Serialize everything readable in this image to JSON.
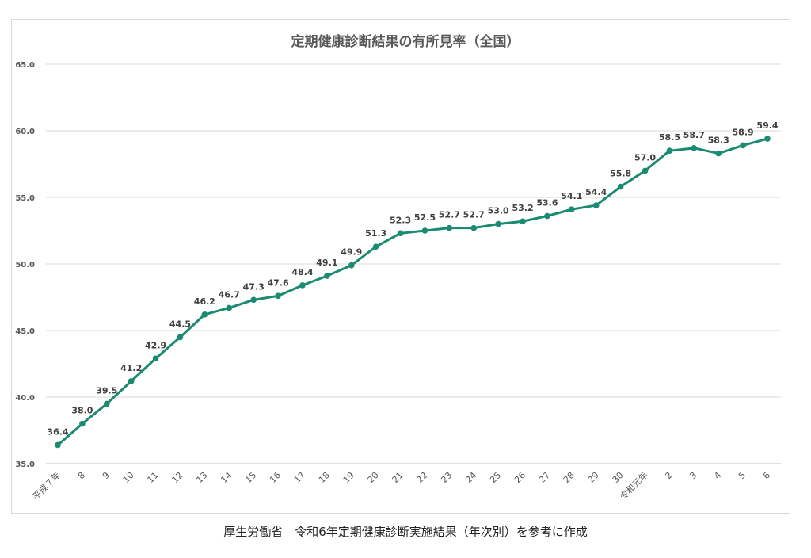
{
  "chart_data": {
    "type": "line",
    "title": "定期健康診断結果の有所見率（全国）",
    "categories": [
      "平成７年",
      "8",
      "9",
      "10",
      "11",
      "12",
      "13",
      "14",
      "15",
      "16",
      "17",
      "18",
      "19",
      "20",
      "21",
      "22",
      "23",
      "24",
      "25",
      "26",
      "27",
      "28",
      "29",
      "30",
      "令和元年",
      "2",
      "3",
      "4",
      "5",
      "6"
    ],
    "series": [
      {
        "values": [
          36.4,
          38.0,
          39.5,
          41.2,
          42.9,
          44.5,
          46.2,
          46.7,
          47.3,
          47.6,
          48.4,
          49.1,
          49.9,
          51.3,
          52.3,
          52.5,
          52.7,
          52.7,
          53.0,
          53.2,
          53.6,
          54.1,
          54.4,
          55.8,
          57.0,
          58.5,
          58.7,
          58.3,
          58.9,
          59.4
        ]
      }
    ],
    "ylim": [
      35.0,
      65.0
    ],
    "yticks": [
      "35.0",
      "40.0",
      "45.0",
      "50.0",
      "55.0",
      "60.0",
      "65.0"
    ],
    "xlabel": "",
    "ylabel": "",
    "grid": true,
    "line_color": "#1a8a72",
    "data_labels": [
      "36.4",
      "38.0",
      "39.5",
      "41.2",
      "42.9",
      "44.5",
      "46.2",
      "46.7",
      "47.3",
      "47.6",
      "48.4",
      "49.1",
      "49.9",
      "51.3",
      "52.3",
      "52.5",
      "52.7",
      "52.7",
      "53.0",
      "53.2",
      "53.6",
      "54.1",
      "54.4",
      "55.8",
      "57.0",
      "58.5",
      "58.7",
      "58.3",
      "58.9",
      "59.4"
    ]
  },
  "source_note": "厚生労働省　令和6年定期健康診断実施結果（年次別）を参考に作成"
}
